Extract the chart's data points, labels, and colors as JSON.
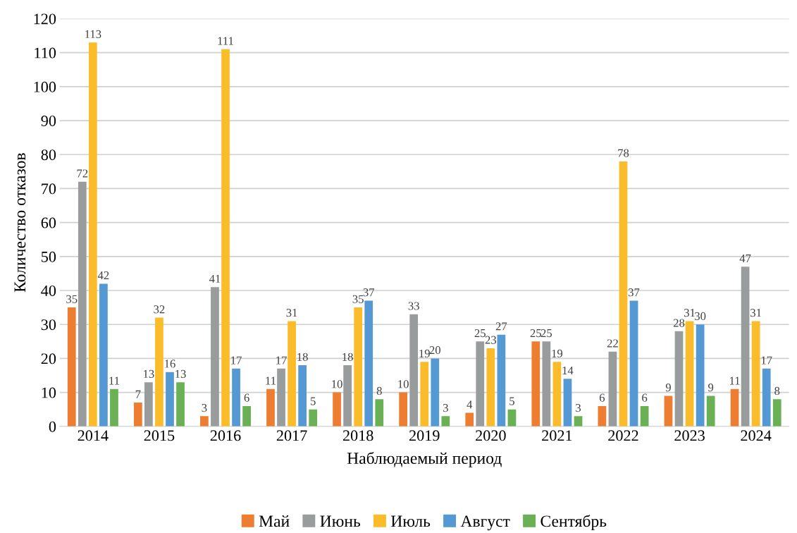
{
  "chart_data": {
    "type": "bar",
    "xlabel": "Наблюдаемый период",
    "ylabel": "Количество отказов",
    "categories": [
      "2014",
      "2015",
      "2016",
      "2017",
      "2018",
      "2019",
      "2020",
      "2021",
      "2022",
      "2023",
      "2024"
    ],
    "series": [
      {
        "name": "Май",
        "color": "#ed7d31",
        "values": [
          35,
          7,
          3,
          11,
          10,
          10,
          4,
          25,
          6,
          9,
          11
        ]
      },
      {
        "name": "Июнь",
        "color": "#999c9c",
        "values": [
          72,
          13,
          41,
          17,
          18,
          33,
          25,
          25,
          22,
          28,
          47
        ]
      },
      {
        "name": "Июль",
        "color": "#fbbc2c",
        "values": [
          113,
          32,
          111,
          31,
          35,
          19,
          23,
          19,
          78,
          31,
          31
        ]
      },
      {
        "name": "Август",
        "color": "#5499d4",
        "values": [
          42,
          16,
          17,
          18,
          37,
          20,
          27,
          14,
          37,
          30,
          17
        ]
      },
      {
        "name": "Сентябрь",
        "color": "#6ab155",
        "values": [
          11,
          13,
          6,
          5,
          8,
          3,
          5,
          3,
          6,
          9,
          8
        ]
      }
    ],
    "ylim": [
      0,
      120
    ],
    "yticks": [
      0,
      10,
      20,
      30,
      40,
      50,
      60,
      70,
      80,
      90,
      100,
      110,
      120
    ],
    "grid": "y",
    "legend": "bottom",
    "data_labels": true
  }
}
